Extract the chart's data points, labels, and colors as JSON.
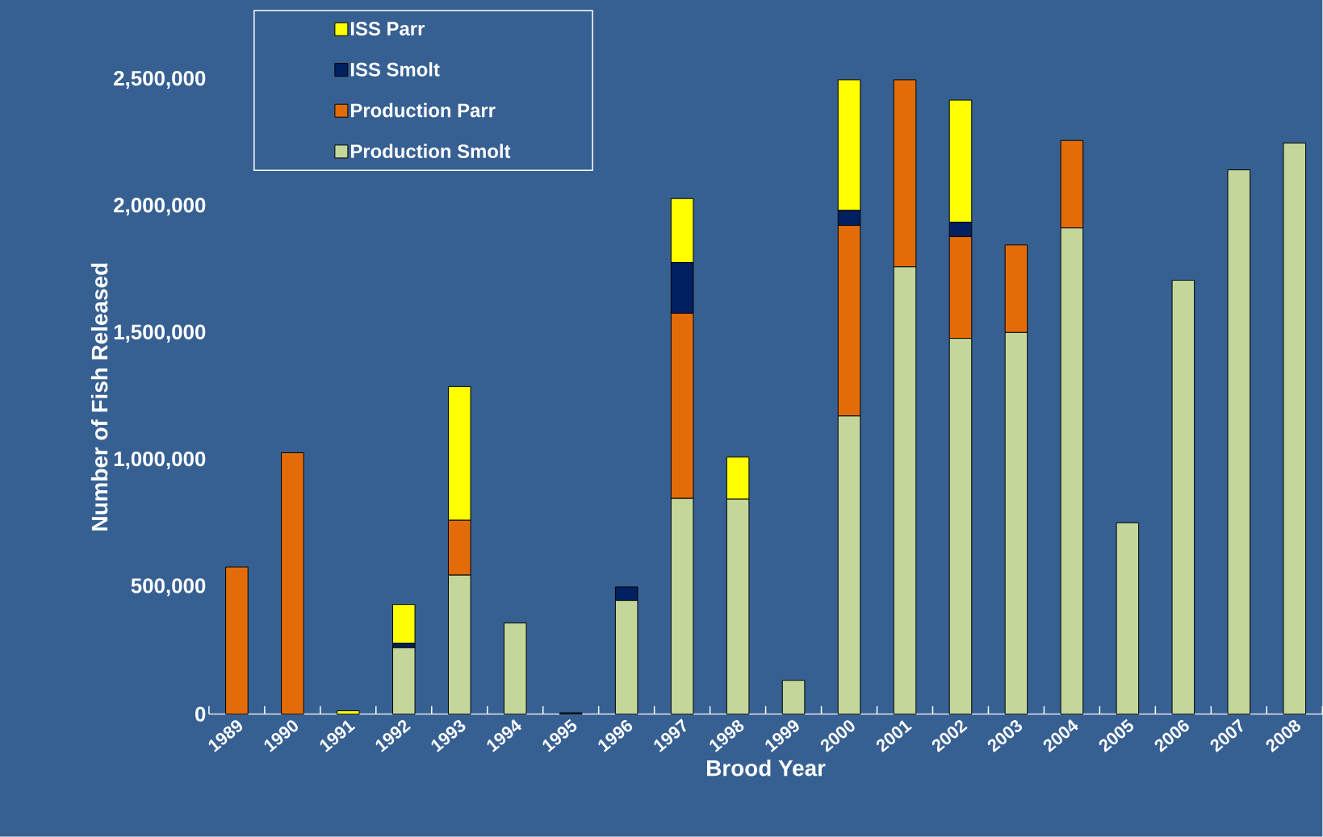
{
  "chart_data": {
    "type": "bar",
    "stacked": true,
    "xlabel": "Brood Year",
    "ylabel": "Number of Fish Released",
    "categories": [
      "1989",
      "1990",
      "1991",
      "1992",
      "1993",
      "1994",
      "1995",
      "1996",
      "1997",
      "1998",
      "1999",
      "2000",
      "2001",
      "2002",
      "2003",
      "2004",
      "2005",
      "2006",
      "2007",
      "2008"
    ],
    "series": [
      {
        "name": "Production Smolt",
        "color": "#c4d79b",
        "values": [
          0,
          0,
          0,
          262000,
          548000,
          359000,
          0,
          448000,
          850000,
          847000,
          133000,
          1175000,
          1763000,
          1481000,
          1504000,
          1916000,
          754000,
          1710000,
          2145000,
          2251000
        ]
      },
      {
        "name": "Production Parr",
        "color": "#e36c09",
        "values": [
          580000,
          1030000,
          0,
          0,
          216000,
          0,
          0,
          0,
          730000,
          0,
          0,
          751000,
          737000,
          401000,
          345000,
          345000,
          0,
          0,
          0,
          0
        ]
      },
      {
        "name": "ISS Smolt",
        "color": "#002060",
        "values": [
          0,
          0,
          0,
          17000,
          0,
          0,
          5000,
          53000,
          200000,
          0,
          0,
          59000,
          0,
          57000,
          0,
          0,
          0,
          0,
          0,
          0
        ]
      },
      {
        "name": "ISS Parr",
        "color": "#ffff00",
        "values": [
          0,
          0,
          13000,
          153000,
          527000,
          0,
          0,
          0,
          252000,
          166000,
          0,
          515000,
          0,
          481000,
          0,
          0,
          0,
          0,
          0,
          0
        ]
      }
    ],
    "ylim": [
      0,
      2500000
    ],
    "yticks": [
      {
        "value": 0,
        "label": "0"
      },
      {
        "value": 500000,
        "label": "500,000"
      },
      {
        "value": 1000000,
        "label": "1,000,000"
      },
      {
        "value": 1500000,
        "label": "1,500,000"
      },
      {
        "value": 2000000,
        "label": "2,000,000"
      },
      {
        "value": 2500000,
        "label": "2,500,000"
      }
    ],
    "legend": "top left"
  }
}
